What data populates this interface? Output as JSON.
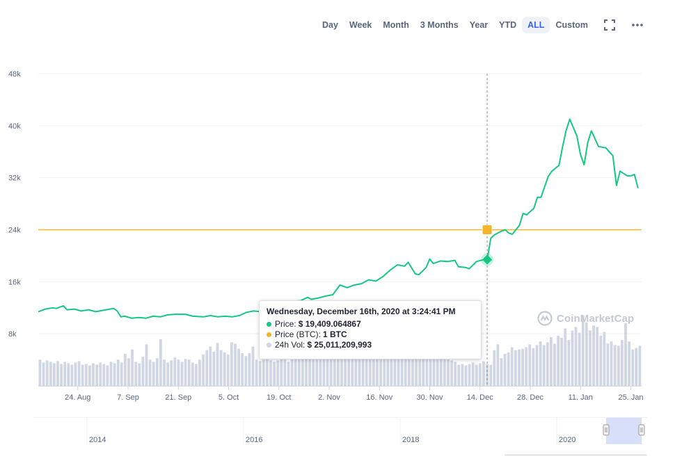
{
  "toolbar": {
    "ranges": [
      "Day",
      "Week",
      "Month",
      "3 Months",
      "Year",
      "YTD",
      "ALL",
      "Custom"
    ],
    "active_range": "ALL",
    "fullscreen_icon": "fullscreen-icon",
    "more_icon": "more-options-icon"
  },
  "tooltip": {
    "title": "Wednesday, December 16th, 2020 at 3:24:41 PM",
    "rows": [
      {
        "label": "Price:",
        "value": "$ 19,409.064867",
        "color": "#16c784"
      },
      {
        "label": "Price (BTC):",
        "value": "1 BTC",
        "color": "#f4b42b"
      },
      {
        "label": "24h Vol:",
        "value": "$ 25,011,209,993",
        "color": "#cfd6e4"
      }
    ]
  },
  "watermark": "CoinMarketCap",
  "colors": {
    "price_line": "#16c784",
    "btc_line": "#f4b42b",
    "volume_bar": "#cfd6e4",
    "grid": "#eff2f5",
    "axis_text": "#58667e",
    "navigator_mask": "#c9d4f7"
  },
  "chart_data": {
    "type": "line",
    "x_start": "2020-08-13",
    "x_end": "2021-01-28",
    "x_ticks": [
      {
        "date": "2020-08-24",
        "label": "24. Aug"
      },
      {
        "date": "2020-09-07",
        "label": "7. Sep"
      },
      {
        "date": "2020-09-21",
        "label": "21. Sep"
      },
      {
        "date": "2020-10-05",
        "label": "5. Oct"
      },
      {
        "date": "2020-10-19",
        "label": "19. Oct"
      },
      {
        "date": "2020-11-02",
        "label": "2. Nov"
      },
      {
        "date": "2020-11-16",
        "label": "16. Nov"
      },
      {
        "date": "2020-11-30",
        "label": "30. Nov"
      },
      {
        "date": "2020-12-14",
        "label": "14. Dec"
      },
      {
        "date": "2020-12-28",
        "label": "28. Dec"
      },
      {
        "date": "2021-01-11",
        "label": "11. Jan"
      },
      {
        "date": "2021-01-25",
        "label": "25. Jan"
      }
    ],
    "y_ticks": [
      {
        "value": 8000,
        "label": "8k"
      },
      {
        "value": 16000,
        "label": "16k"
      },
      {
        "value": 24000,
        "label": "24k"
      },
      {
        "value": 32000,
        "label": "32k"
      },
      {
        "value": 40000,
        "label": "40k"
      },
      {
        "value": 48000,
        "label": "48k"
      }
    ],
    "ylim": [
      0,
      48000
    ],
    "grid": true,
    "btc_price_value": 24000,
    "price_series": {
      "name": "Price",
      "points": [
        [
          "2020-08-13",
          11400
        ],
        [
          "2020-08-15",
          11800
        ],
        [
          "2020-08-17",
          12000
        ],
        [
          "2020-08-18",
          11900
        ],
        [
          "2020-08-20",
          12300
        ],
        [
          "2020-08-21",
          11700
        ],
        [
          "2020-08-23",
          11800
        ],
        [
          "2020-08-25",
          11500
        ],
        [
          "2020-08-27",
          11700
        ],
        [
          "2020-08-29",
          11400
        ],
        [
          "2020-08-31",
          11600
        ],
        [
          "2020-09-02",
          11800
        ],
        [
          "2020-09-03",
          11900
        ],
        [
          "2020-09-04",
          11500
        ],
        [
          "2020-09-05",
          10600
        ],
        [
          "2020-09-06",
          10700
        ],
        [
          "2020-09-08",
          10400
        ],
        [
          "2020-09-10",
          10500
        ],
        [
          "2020-09-12",
          10400
        ],
        [
          "2020-09-14",
          10700
        ],
        [
          "2020-09-16",
          10600
        ],
        [
          "2020-09-18",
          10900
        ],
        [
          "2020-09-20",
          11000
        ],
        [
          "2020-09-23",
          11000
        ],
        [
          "2020-09-25",
          10700
        ],
        [
          "2020-09-28",
          10600
        ],
        [
          "2020-09-30",
          10800
        ],
        [
          "2020-10-02",
          10600
        ],
        [
          "2020-10-04",
          10700
        ],
        [
          "2020-10-06",
          10600
        ],
        [
          "2020-10-08",
          10800
        ],
        [
          "2020-10-10",
          11300
        ],
        [
          "2020-10-12",
          11500
        ],
        [
          "2020-10-14",
          11400
        ],
        [
          "2020-10-16",
          11300
        ],
        [
          "2020-10-18",
          11500
        ],
        [
          "2020-10-20",
          11900
        ],
        [
          "2020-10-21",
          12800
        ],
        [
          "2020-10-23",
          13000
        ],
        [
          "2020-10-25",
          13100
        ],
        [
          "2020-10-27",
          13600
        ],
        [
          "2020-10-28",
          13300
        ],
        [
          "2020-10-30",
          13500
        ],
        [
          "2020-11-01",
          13800
        ],
        [
          "2020-11-03",
          14000
        ],
        [
          "2020-11-05",
          15500
        ],
        [
          "2020-11-07",
          15100
        ],
        [
          "2020-11-09",
          15500
        ],
        [
          "2020-11-11",
          15700
        ],
        [
          "2020-11-13",
          16300
        ],
        [
          "2020-11-15",
          16100
        ],
        [
          "2020-11-17",
          16800
        ],
        [
          "2020-11-19",
          17800
        ],
        [
          "2020-11-21",
          18600
        ],
        [
          "2020-11-23",
          18400
        ],
        [
          "2020-11-24",
          19000
        ],
        [
          "2020-11-26",
          17200
        ],
        [
          "2020-11-27",
          17100
        ],
        [
          "2020-11-29",
          18200
        ],
        [
          "2020-11-30",
          19500
        ],
        [
          "2020-12-01",
          18800
        ],
        [
          "2020-12-03",
          19200
        ],
        [
          "2020-12-05",
          19100
        ],
        [
          "2020-12-07",
          19300
        ],
        [
          "2020-12-08",
          18300
        ],
        [
          "2020-12-10",
          18200
        ],
        [
          "2020-12-11",
          18000
        ],
        [
          "2020-12-13",
          19100
        ],
        [
          "2020-12-15",
          19400
        ],
        [
          "2020-12-16",
          19409
        ],
        [
          "2020-12-17",
          22700
        ],
        [
          "2020-12-18",
          23200
        ],
        [
          "2020-12-20",
          23800
        ],
        [
          "2020-12-21",
          24000
        ],
        [
          "2020-12-22",
          23500
        ],
        [
          "2020-12-23",
          23300
        ],
        [
          "2020-12-25",
          24700
        ],
        [
          "2020-12-26",
          26500
        ],
        [
          "2020-12-27",
          26300
        ],
        [
          "2020-12-29",
          27300
        ],
        [
          "2020-12-30",
          29000
        ],
        [
          "2020-12-31",
          29000
        ],
        [
          "2021-01-02",
          32200
        ],
        [
          "2021-01-03",
          33000
        ],
        [
          "2021-01-05",
          33900
        ],
        [
          "2021-01-06",
          36800
        ],
        [
          "2021-01-07",
          39300
        ],
        [
          "2021-01-08",
          41000
        ],
        [
          "2021-01-10",
          38400
        ],
        [
          "2021-01-11",
          35500
        ],
        [
          "2021-01-12",
          34000
        ],
        [
          "2021-01-13",
          37400
        ],
        [
          "2021-01-14",
          39200
        ],
        [
          "2021-01-16",
          36800
        ],
        [
          "2021-01-18",
          36600
        ],
        [
          "2021-01-20",
          35400
        ],
        [
          "2021-01-21",
          30800
        ],
        [
          "2021-01-22",
          33000
        ],
        [
          "2021-01-24",
          32300
        ],
        [
          "2021-01-25",
          32300
        ],
        [
          "2021-01-26",
          32500
        ],
        [
          "2021-01-27",
          30400
        ]
      ]
    },
    "volume_series": {
      "name": "24h Vol",
      "values": [
        3.6,
        3.2,
        3.5,
        3.3,
        3.1,
        3.4,
        3.0,
        3.3,
        3.1,
        2.9,
        3.2,
        3.4,
        2.9,
        3.0,
        2.8,
        3.1,
        2.9,
        3.2,
        3.0,
        2.8,
        3.3,
        3.1,
        3.6,
        3.2,
        4.4,
        3.8,
        5.0,
        3.3,
        3.1,
        4.0,
        5.7,
        3.6,
        3.3,
        3.8,
        6.4,
        3.6,
        3.2,
        3.5,
        3.9,
        3.6,
        3.3,
        3.7,
        3.6,
        3.2,
        3.0,
        3.6,
        4.3,
        4.9,
        5.4,
        4.7,
        5.9,
        4.9,
        4.6,
        4.3,
        6.0,
        5.8,
        5.1,
        4.5,
        4.1,
        4.5,
        5.4,
        3.6,
        3.4,
        3.6,
        4.0,
        3.5,
        3.3,
        3.5,
        3.9,
        3.6,
        3.3,
        4.0,
        4.7,
        4.3,
        4.9,
        4.3,
        4.9,
        5.4,
        4.4,
        4.3,
        4.8,
        4.9,
        5.4,
        5.0,
        4.6,
        4.4,
        4.9,
        5.1,
        4.6,
        4.4,
        4.6,
        5.1,
        5.6,
        4.9,
        5.3,
        5.8,
        5.6,
        5.2,
        6.5,
        5.0,
        4.7,
        4.9,
        5.8,
        4.6,
        4.3,
        4.8,
        5.2,
        4.5,
        4.9,
        5.1,
        5.4,
        4.6,
        4.2,
        3.8,
        4.9,
        4.1,
        3.5,
        3.3,
        2.9,
        3.0,
        2.8,
        3.0,
        3.2,
        2.9,
        3.1,
        3.4,
        3.0,
        2.9,
        4.9,
        5.7,
        3.8,
        4.4,
        4.6,
        5.3,
        4.9,
        5.0,
        5.1,
        5.3,
        5.7,
        5.2,
        5.6,
        6.1,
        5.6,
        6.0,
        6.7,
        5.8,
        6.9,
        6.6,
        7.9,
        6.3,
        7.6,
        8.1,
        7.3,
        9.7,
        8.7,
        7.6,
        8.3,
        8.1,
        6.9,
        7.4,
        5.8,
        6.1,
        5.6,
        5.5,
        6.3,
        8.6,
        6.1,
        5.0,
        5.2,
        5.5
      ],
      "unit": "$B"
    },
    "navigator": {
      "labels": [
        "2014",
        "2016",
        "2018",
        "2020"
      ]
    }
  }
}
